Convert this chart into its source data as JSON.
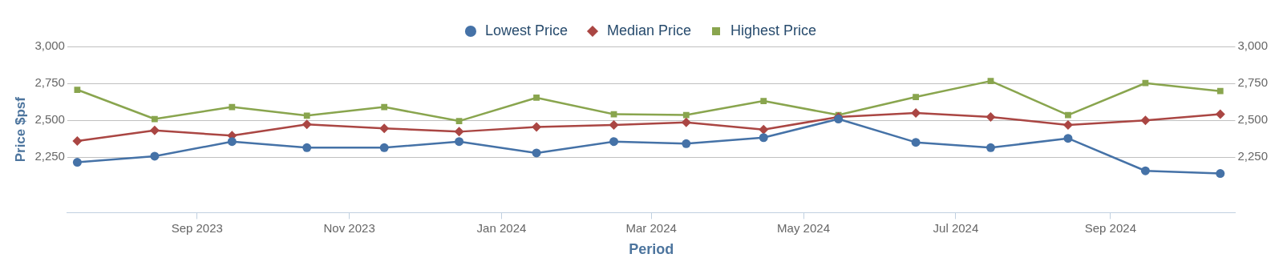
{
  "chart_data": {
    "type": "line",
    "xlabel": "Period",
    "ylabel": "Price $psf",
    "x": [
      "2023-07-15",
      "2023-08-15",
      "2023-09-15",
      "2023-10-15",
      "2023-11-15",
      "2023-12-15",
      "2024-01-15",
      "2024-02-15",
      "2024-03-15",
      "2024-04-15",
      "2024-05-15",
      "2024-06-15",
      "2024-07-15",
      "2024-08-15",
      "2024-09-15",
      "2024-10-15"
    ],
    "series": [
      {
        "name": "Lowest Price",
        "color": "#4572a7",
        "marker": "circle",
        "values": [
          2216,
          2257,
          2356,
          2315,
          2315,
          2356,
          2279,
          2356,
          2342,
          2383,
          2509,
          2351,
          2315,
          2378,
          2158,
          2140
        ]
      },
      {
        "name": "Median Price",
        "color": "#aa4643",
        "marker": "diamond",
        "values": [
          2360,
          2432,
          2396,
          2473,
          2446,
          2423,
          2455,
          2468,
          2486,
          2437,
          2523,
          2550,
          2523,
          2468,
          2500,
          2541
        ]
      },
      {
        "name": "Highest Price",
        "color": "#89a54e",
        "marker": "square",
        "values": [
          2707,
          2509,
          2590,
          2532,
          2590,
          2495,
          2653,
          2541,
          2536,
          2631,
          2536,
          2658,
          2766,
          2536,
          2752,
          2698
        ]
      }
    ],
    "xlim": [
      "2023-07-11",
      "2024-10-21"
    ],
    "xticks": [
      {
        "value": "2023-09-01",
        "label": "Sep 2023"
      },
      {
        "value": "2023-11-01",
        "label": "Nov 2023"
      },
      {
        "value": "2024-01-01",
        "label": "Jan 2024"
      },
      {
        "value": "2024-03-01",
        "label": "Mar 2024"
      },
      {
        "value": "2024-05-01",
        "label": "May 2024"
      },
      {
        "value": "2024-07-01",
        "label": "Jul 2024"
      },
      {
        "value": "2024-09-01",
        "label": "Sep 2024"
      }
    ],
    "ylim": [
      1875,
      3000
    ],
    "yticks": [
      {
        "value": 2250,
        "label": "2,250"
      },
      {
        "value": 2500,
        "label": "2,500"
      },
      {
        "value": 2750,
        "label": "2,750"
      },
      {
        "value": 3000,
        "label": "3,000"
      }
    ],
    "y2lim": [
      1875,
      3000
    ],
    "y2ticks": [
      {
        "value": 2250,
        "label": "2,250"
      },
      {
        "value": 2500,
        "label": "2,500"
      },
      {
        "value": 2750,
        "label": "2,750"
      },
      {
        "value": 3000,
        "label": "3,000"
      }
    ],
    "grid": "y",
    "legend": "top",
    "line_style": "solid"
  }
}
